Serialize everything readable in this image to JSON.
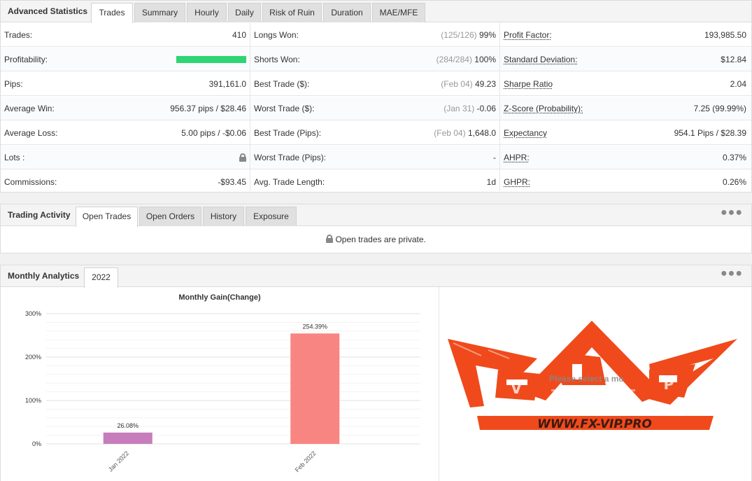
{
  "advanced": {
    "title": "Advanced Statistics",
    "tabs": [
      "Trades",
      "Summary",
      "Hourly",
      "Daily",
      "Risk of Ruin",
      "Duration",
      "MAE/MFE"
    ],
    "col1": [
      {
        "label": "Trades:",
        "value": "410"
      },
      {
        "label": "Profitability:",
        "value": "",
        "bar_fraction": 1.0,
        "bar_color": "#2ed573"
      },
      {
        "label": "Pips:",
        "value": "391,161.0"
      },
      {
        "label": "Average Win:",
        "value": "956.37 pips / $28.46"
      },
      {
        "label": "Average Loss:",
        "value": "5.00 pips / -$0.06"
      },
      {
        "label": "Lots :",
        "value": "",
        "icon": "lock-icon"
      },
      {
        "label": "Commissions:",
        "value": "-$93.45"
      }
    ],
    "col2": [
      {
        "label": "Longs Won:",
        "muted": "(125/126)",
        "value": "99%"
      },
      {
        "label": "Shorts Won:",
        "muted": "(284/284)",
        "value": "100%"
      },
      {
        "label": "Best Trade ($):",
        "muted": "(Feb 04)",
        "value": "49.23"
      },
      {
        "label": "Worst Trade ($):",
        "muted": "(Jan 31)",
        "value": "-0.06"
      },
      {
        "label": "Best Trade (Pips):",
        "muted": "(Feb 04)",
        "value": "1,648.0"
      },
      {
        "label": "Worst Trade (Pips):",
        "muted": "",
        "value": "-"
      },
      {
        "label": "Avg. Trade Length:",
        "muted": "",
        "value": "1d"
      }
    ],
    "col3": [
      {
        "label": "Profit Factor:",
        "value": "193,985.50"
      },
      {
        "label": "Standard Deviation:",
        "value": "$12.84"
      },
      {
        "label": "Sharpe Ratio",
        "value": "2.04"
      },
      {
        "label": "Z-Score (Probability):",
        "value": "7.25 (99.99%)"
      },
      {
        "label": "Expectancy",
        "value": "954.1 Pips / $28.39"
      },
      {
        "label": "AHPR:",
        "value": "0.37%"
      },
      {
        "label": "GHPR:",
        "value": "0.26%"
      }
    ]
  },
  "activity": {
    "title": "Trading Activity",
    "tabs": [
      "Open Trades",
      "Open Orders",
      "History",
      "Exposure"
    ],
    "message": "Open trades are private.",
    "menu_icon": "more-dots-icon"
  },
  "monthly": {
    "title": "Monthly Analytics",
    "tabs": [
      "2022"
    ],
    "menu_icon": "more-dots-icon",
    "overlay_text": "Please select a mo",
    "watermark_text": "WWW.FX-VIP.PRO",
    "watermark_letters": [
      "V",
      "I",
      "P"
    ],
    "watermark_color": "#f04a1c"
  },
  "chart_data": {
    "type": "bar",
    "title": "Monthly Gain(Change)",
    "categories": [
      "Jan 2022",
      "Feb 2022"
    ],
    "values": [
      26.08,
      254.39
    ],
    "value_labels": [
      "26.08%",
      "254.39%"
    ],
    "colors": [
      "#c77dbb",
      "#f88581"
    ],
    "yticks": [
      "0%",
      "100%",
      "200%",
      "300%"
    ],
    "ylim": [
      0,
      300
    ],
    "grid": true
  }
}
